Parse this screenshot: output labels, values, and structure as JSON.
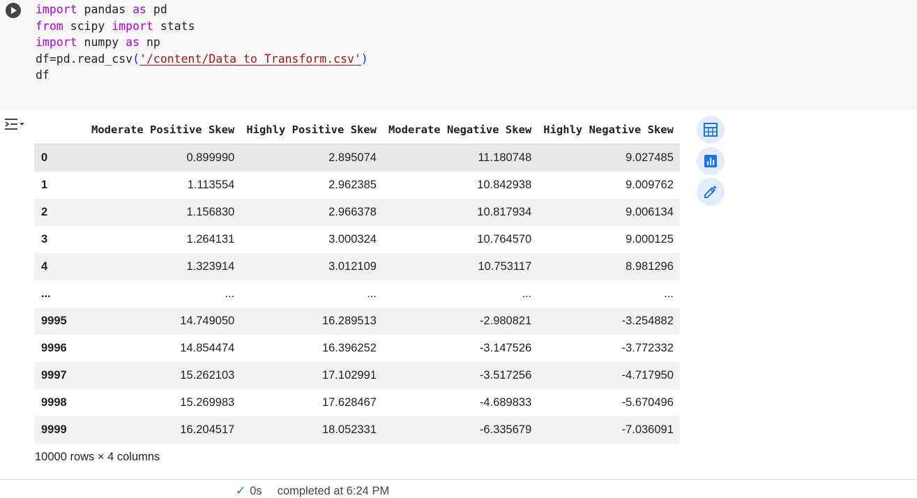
{
  "code_cell": {
    "run_icon": "play-icon",
    "lines": [
      [
        {
          "t": "import",
          "c": "kw"
        },
        {
          "t": " pandas "
        },
        {
          "t": "as",
          "c": "kw"
        },
        {
          "t": " pd"
        }
      ],
      [
        {
          "t": "from",
          "c": "kw"
        },
        {
          "t": " scipy "
        },
        {
          "t": "import",
          "c": "kw"
        },
        {
          "t": " stats"
        }
      ],
      [
        {
          "t": "import",
          "c": "kw"
        },
        {
          "t": " numpy "
        },
        {
          "t": "as",
          "c": "kw"
        },
        {
          "t": " np"
        }
      ],
      [
        {
          "t": "df=pd.read_csv"
        },
        {
          "t": "(",
          "c": "paren"
        },
        {
          "t": "'/content/Data_to_Transform.csv'",
          "c": "str"
        },
        {
          "t": ")",
          "c": "paren"
        }
      ],
      [
        {
          "t": "df"
        }
      ]
    ]
  },
  "output": {
    "toggle_icon": "output-options-icon",
    "columns": [
      "Moderate Positive Skew",
      "Highly Positive Skew",
      "Moderate Negative Skew",
      "Highly Negative Skew"
    ],
    "rows": [
      {
        "index": "0",
        "values": [
          "0.899990",
          "2.895074",
          "11.180748",
          "9.027485"
        ]
      },
      {
        "index": "1",
        "values": [
          "1.113554",
          "2.962385",
          "10.842938",
          "9.009762"
        ]
      },
      {
        "index": "2",
        "values": [
          "1.156830",
          "2.966378",
          "10.817934",
          "9.006134"
        ]
      },
      {
        "index": "3",
        "values": [
          "1.264131",
          "3.000324",
          "10.764570",
          "9.000125"
        ]
      },
      {
        "index": "4",
        "values": [
          "1.323914",
          "3.012109",
          "10.753117",
          "8.981296"
        ]
      },
      {
        "index": "...",
        "values": [
          "...",
          "...",
          "...",
          "..."
        ]
      },
      {
        "index": "9995",
        "values": [
          "14.749050",
          "16.289513",
          "-2.980821",
          "-3.254882"
        ]
      },
      {
        "index": "9996",
        "values": [
          "14.854474",
          "16.396252",
          "-3.147526",
          "-3.772332"
        ]
      },
      {
        "index": "9997",
        "values": [
          "15.262103",
          "17.102991",
          "-3.517256",
          "-4.717950"
        ]
      },
      {
        "index": "9998",
        "values": [
          "15.269983",
          "17.628467",
          "-4.689833",
          "-5.670496"
        ]
      },
      {
        "index": "9999",
        "values": [
          "16.204517",
          "18.052331",
          "-6.335679",
          "-7.036091"
        ]
      }
    ],
    "shape_text": "10000 rows × 4 columns",
    "side_actions": [
      {
        "name": "table-icon",
        "color": "#1a73e8"
      },
      {
        "name": "chart-icon",
        "color": "#1a73e8"
      },
      {
        "name": "magic-edit-icon",
        "color": "#1a73e8"
      }
    ]
  },
  "status": {
    "check": "✓",
    "duration": "0s",
    "text": "completed at 6:24 PM"
  }
}
